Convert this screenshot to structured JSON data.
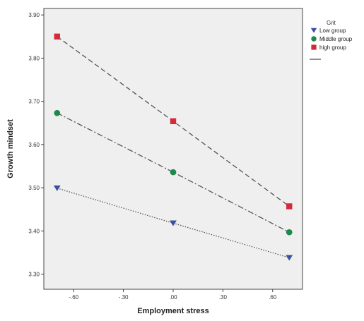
{
  "chart_data": {
    "type": "line",
    "title": "",
    "xlabel": "Employment stress",
    "ylabel": "Growth mindset",
    "x": [
      -0.7,
      0.0,
      0.7
    ],
    "xlim": [
      -0.78,
      0.78
    ],
    "ylim": [
      3.265,
      3.915
    ],
    "x_ticks": [
      -0.6,
      -0.3,
      0.0,
      0.3,
      0.6
    ],
    "x_tick_labels": [
      "-.60",
      "-.30",
      ".00",
      ".30",
      ".60"
    ],
    "y_ticks": [
      3.3,
      3.4,
      3.5,
      3.6,
      3.7,
      3.8,
      3.9
    ],
    "y_tick_labels": [
      "3.30",
      "3.40",
      "3.50",
      "3.60",
      "3.70",
      "3.80",
      "3.90"
    ],
    "grid": false,
    "legend_title": "Grit",
    "legend_position": "right",
    "series": [
      {
        "name": "Low group",
        "values": [
          3.499,
          3.418,
          3.338
        ],
        "color": "#3a4fa0",
        "marker": "triangle-down",
        "line": "dotted"
      },
      {
        "name": "Middle group",
        "values": [
          3.673,
          3.536,
          3.397
        ],
        "color": "#1e8a4a",
        "marker": "circle",
        "line": "dash-dot"
      },
      {
        "name": "high group",
        "values": [
          3.85,
          3.654,
          3.457
        ],
        "color": "#d62a3a",
        "marker": "square",
        "line": "dashed"
      }
    ],
    "plot_background": "#efefef"
  }
}
